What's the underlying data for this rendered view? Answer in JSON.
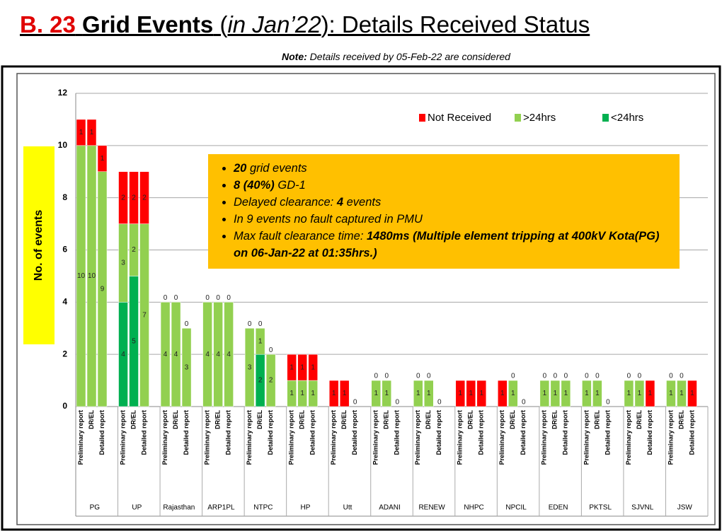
{
  "title_prefix": "B. 23",
  "title_main": "Grid Events",
  "title_open": " (",
  "title_italic": "in Jan’22",
  "title_rest": "): Details Received Status",
  "note_label": "Note:",
  "note_text": " Details received by 05-Feb-22 are considered",
  "annotation": [
    [
      {
        "text": "20",
        "bold": true
      },
      {
        "text": " grid events",
        "bold": false
      }
    ],
    [
      {
        "text": "8 (40%)",
        "bold": true
      },
      {
        "text": " GD-1",
        "bold": false
      }
    ],
    [
      {
        "text": "Delayed clearance: ",
        "bold": false
      },
      {
        "text": "4",
        "bold": true
      },
      {
        "text": " events",
        "bold": false
      }
    ],
    [
      {
        "text": "In 9 events no fault captured in PMU",
        "bold": false
      }
    ],
    [
      {
        "text": "Max fault clearance time: ",
        "bold": false
      },
      {
        "text": "1480ms (Multiple element tripping at 400kV Kota(PG) on 06-Jan-22 at 01:35hrs.)",
        "bold": true
      }
    ]
  ],
  "chart_data": {
    "type": "bar",
    "stacked": true,
    "y_label": "No. of events",
    "legend": "top-right",
    "groups": [
      "PG",
      "UP",
      "Rajasthan",
      "ARP1PL",
      "NTPC",
      "HP",
      "Utt",
      "ADANI",
      "RENEW",
      "NHPC",
      "NPCIL",
      "EDEN",
      "PKTSL",
      "SJVNL",
      "JSW"
    ],
    "subcategories": [
      "Preliminary report",
      "DR/EL",
      "Detailed report"
    ],
    "ylim": [
      0,
      12
    ],
    "yticks": [
      0,
      2,
      4,
      6,
      8,
      10,
      12
    ],
    "grid": true,
    "series": [
      {
        "name": "<24hrs",
        "color": "#00b050",
        "values": [
          0,
          0,
          null,
          4,
          5,
          null,
          0,
          0,
          null,
          0,
          0,
          null,
          0,
          2,
          null,
          null,
          null,
          null,
          0,
          0,
          0,
          0,
          0,
          0,
          0,
          0,
          0,
          0,
          null,
          null,
          null,
          null,
          0,
          null,
          null,
          null,
          null,
          null,
          0,
          null,
          null,
          null,
          null,
          null,
          null
        ]
      },
      {
        "name": ">24hrs",
        "color": "#92d050",
        "values": [
          10,
          10,
          9,
          3,
          2,
          7,
          4,
          4,
          3,
          4,
          4,
          4,
          3,
          1,
          2,
          1,
          1,
          1,
          null,
          null,
          null,
          1,
          1,
          null,
          1,
          1,
          null,
          null,
          null,
          null,
          null,
          1,
          null,
          1,
          1,
          1,
          1,
          1,
          null,
          1,
          1,
          null,
          1,
          1,
          null
        ]
      },
      {
        "name": "Not Received",
        "color": "#ff0000",
        "values": [
          1,
          1,
          1,
          2,
          2,
          2,
          0,
          0,
          0,
          0,
          0,
          0,
          0,
          0,
          0,
          1,
          1,
          1,
          1,
          1,
          null,
          0,
          0,
          null,
          0,
          0,
          null,
          1,
          1,
          1,
          1,
          0,
          null,
          0,
          0,
          0,
          0,
          0,
          null,
          0,
          0,
          1,
          0,
          0,
          1
        ]
      }
    ]
  }
}
